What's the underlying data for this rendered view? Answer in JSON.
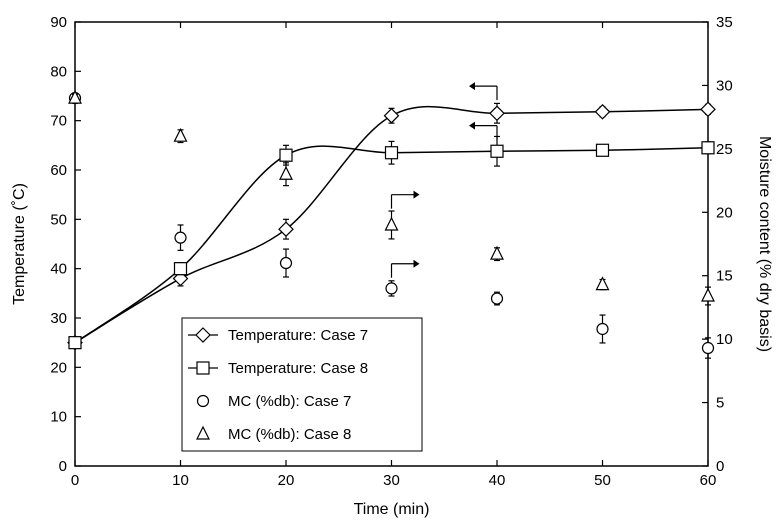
{
  "chart_data": {
    "type": "line",
    "xlabel": "Time (min)",
    "ylabel": "Temperature (˚C)",
    "y2label": "Moisture content (% dry basis)",
    "xlim": [
      0,
      60
    ],
    "ylim": [
      0,
      90
    ],
    "y2lim": [
      0,
      35
    ],
    "x_ticks": [
      "0",
      "10",
      "20",
      "30",
      "40",
      "50",
      "60"
    ],
    "y_ticks": [
      "0",
      "10",
      "20",
      "30",
      "40",
      "50",
      "60",
      "70",
      "80",
      "90"
    ],
    "y2_ticks": [
      "0",
      "5",
      "10",
      "15",
      "20",
      "25",
      "30",
      "35"
    ],
    "grid": false,
    "legend_position": "lower-left",
    "series": [
      {
        "name": "Temperature: Case 7",
        "axis": "left",
        "marker": "diamond",
        "line": true,
        "x": [
          0,
          10,
          20,
          30,
          40,
          50,
          60
        ],
        "y": [
          25,
          38,
          48,
          71,
          71.5,
          71.8,
          72.3
        ],
        "err": [
          0.5,
          1.5,
          2,
          1.5,
          2,
          1,
          1
        ]
      },
      {
        "name": "Temperature: Case 8",
        "axis": "left",
        "marker": "square",
        "line": true,
        "x": [
          0,
          10,
          20,
          30,
          40,
          50,
          60
        ],
        "y": [
          25,
          40,
          63,
          63.5,
          63.8,
          64,
          64.5
        ],
        "err": [
          0.5,
          1.2,
          2,
          2.3,
          3,
          1,
          1.2
        ]
      },
      {
        "name": "MC (%db): Case 7",
        "axis": "right",
        "marker": "circle",
        "line": false,
        "x": [
          0,
          10,
          20,
          30,
          40,
          50,
          60
        ],
        "y": [
          29,
          18,
          16,
          14,
          13.2,
          10.8,
          9.3
        ],
        "err": [
          0.4,
          1,
          1.1,
          0.6,
          0.5,
          1.1,
          0.8
        ]
      },
      {
        "name": "MC (%db): Case 8",
        "axis": "right",
        "marker": "triangle",
        "line": false,
        "x": [
          0,
          10,
          20,
          30,
          40,
          50,
          60
        ],
        "y": [
          29,
          26,
          23,
          19,
          16.7,
          14.3,
          13.4
        ],
        "err": [
          0.3,
          0.5,
          0.9,
          1.1,
          0.5,
          0.4,
          0.7
        ]
      }
    ],
    "annotations": [
      {
        "kind": "arrow-left",
        "x": 40,
        "y": 77,
        "axis": "left"
      },
      {
        "kind": "arrow-left",
        "x": 40,
        "y": 69,
        "axis": "left"
      },
      {
        "kind": "arrow-right",
        "x": 30,
        "y": 55,
        "axis": "left"
      },
      {
        "kind": "arrow-right",
        "x": 30,
        "y": 41,
        "axis": "left"
      }
    ]
  }
}
